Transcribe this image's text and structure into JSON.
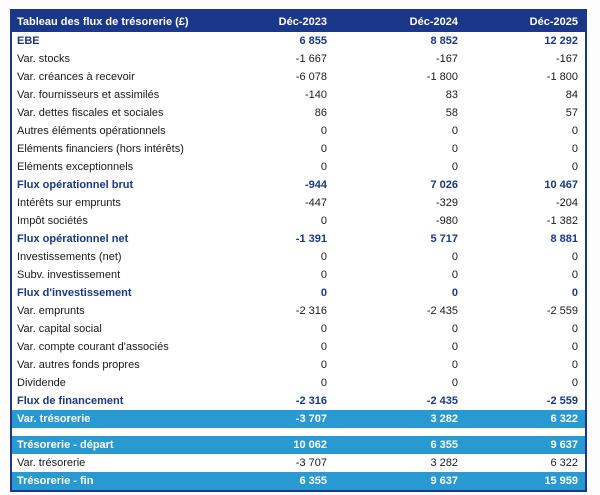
{
  "table": {
    "title": "Tableau des flux de trésorerie (£)",
    "columns": [
      "Déc-2023",
      "Déc-2024",
      "Déc-2025"
    ],
    "colors": {
      "header_navy": "#1b3789",
      "highlight_teal": "#2999d2",
      "body_text": "#1a1a1a",
      "header_text": "#ffffff"
    },
    "rows": [
      {
        "label": "EBE",
        "values": [
          "6 855",
          "8 852",
          "12 292"
        ],
        "style": "bold"
      },
      {
        "label": "Var. stocks",
        "values": [
          "-1 667",
          "-167",
          "-167"
        ],
        "style": "plain"
      },
      {
        "label": "Var. créances à recevoir",
        "values": [
          "-6 078",
          "-1 800",
          "-1 800"
        ],
        "style": "plain"
      },
      {
        "label": "Var. fournisseurs et assimilés",
        "values": [
          "-140",
          "83",
          "84"
        ],
        "style": "plain"
      },
      {
        "label": "Var. dettes fiscales et sociales",
        "values": [
          "86",
          "58",
          "57"
        ],
        "style": "plain"
      },
      {
        "label": "Autres éléments opérationnels",
        "values": [
          "0",
          "0",
          "0"
        ],
        "style": "plain"
      },
      {
        "label": "Eléments financiers (hors intérêts)",
        "values": [
          "0",
          "0",
          "0"
        ],
        "style": "plain"
      },
      {
        "label": "Eléments exceptionnels",
        "values": [
          "0",
          "0",
          "0"
        ],
        "style": "plain"
      },
      {
        "label": "Flux opérationnel brut",
        "values": [
          "-944",
          "7 026",
          "10 467"
        ],
        "style": "bold"
      },
      {
        "label": "Intérêts sur emprunts",
        "values": [
          "-447",
          "-329",
          "-204"
        ],
        "style": "plain"
      },
      {
        "label": "Impôt sociétés",
        "values": [
          "0",
          "-980",
          "-1 382"
        ],
        "style": "plain"
      },
      {
        "label": "Flux opérationnel net",
        "values": [
          "-1 391",
          "5 717",
          "8 881"
        ],
        "style": "bold"
      },
      {
        "label": "Investissements (net)",
        "values": [
          "0",
          "0",
          "0"
        ],
        "style": "plain"
      },
      {
        "label": "Subv. investissement",
        "values": [
          "0",
          "0",
          "0"
        ],
        "style": "plain"
      },
      {
        "label": "Flux d'investissement",
        "values": [
          "0",
          "0",
          "0"
        ],
        "style": "bold"
      },
      {
        "label": "Var. emprunts",
        "values": [
          "-2 316",
          "-2 435",
          "-2 559"
        ],
        "style": "plain"
      },
      {
        "label": "Var. capital social",
        "values": [
          "0",
          "0",
          "0"
        ],
        "style": "plain"
      },
      {
        "label": "Var. compte courant d'associés",
        "values": [
          "0",
          "0",
          "0"
        ],
        "style": "plain"
      },
      {
        "label": "Var. autres fonds propres",
        "values": [
          "0",
          "0",
          "0"
        ],
        "style": "plain"
      },
      {
        "label": "Dividende",
        "values": [
          "0",
          "0",
          "0"
        ],
        "style": "plain"
      },
      {
        "label": "Flux de financement",
        "values": [
          "-2 316",
          "-2 435",
          "-2 559"
        ],
        "style": "bold"
      },
      {
        "label": "Var. trésorerie",
        "values": [
          "-3 707",
          "3 282",
          "6 322"
        ],
        "style": "teal"
      },
      {
        "label": "",
        "values": [
          "",
          "",
          ""
        ],
        "style": "spacer"
      },
      {
        "label": "Trésorerie - départ",
        "values": [
          "10 062",
          "6 355",
          "9 637"
        ],
        "style": "teal"
      },
      {
        "label": "Var. trésorerie",
        "values": [
          "-3 707",
          "3 282",
          "6 322"
        ],
        "style": "plain"
      },
      {
        "label": "Trésorerie - fin",
        "values": [
          "6 355",
          "9 637",
          "15 959"
        ],
        "style": "teal"
      }
    ]
  },
  "chart_data": {
    "type": "table",
    "title": "Tableau des flux de trésorerie (£)",
    "columns": [
      "Tableau des flux de trésorerie (£)",
      "Déc-2023",
      "Déc-2024",
      "Déc-2025"
    ],
    "rows": [
      [
        "EBE",
        6855,
        8852,
        12292
      ],
      [
        "Var. stocks",
        -1667,
        -167,
        -167
      ],
      [
        "Var. créances à recevoir",
        -6078,
        -1800,
        -1800
      ],
      [
        "Var. fournisseurs et assimilés",
        -140,
        83,
        84
      ],
      [
        "Var. dettes fiscales et sociales",
        86,
        58,
        57
      ],
      [
        "Autres éléments opérationnels",
        0,
        0,
        0
      ],
      [
        "Eléments financiers (hors intérêts)",
        0,
        0,
        0
      ],
      [
        "Eléments exceptionnels",
        0,
        0,
        0
      ],
      [
        "Flux opérationnel brut",
        -944,
        7026,
        10467
      ],
      [
        "Intérêts sur emprunts",
        -447,
        -329,
        -204
      ],
      [
        "Impôt sociétés",
        0,
        -980,
        -1382
      ],
      [
        "Flux opérationnel net",
        -1391,
        5717,
        8881
      ],
      [
        "Investissements (net)",
        0,
        0,
        0
      ],
      [
        "Subv. investissement",
        0,
        0,
        0
      ],
      [
        "Flux d'investissement",
        0,
        0,
        0
      ],
      [
        "Var. emprunts",
        -2316,
        -2435,
        -2559
      ],
      [
        "Var. capital social",
        0,
        0,
        0
      ],
      [
        "Var. compte courant d'associés",
        0,
        0,
        0
      ],
      [
        "Var. autres fonds propres",
        0,
        0,
        0
      ],
      [
        "Dividende",
        0,
        0,
        0
      ],
      [
        "Flux de financement",
        -2316,
        -2435,
        -2559
      ],
      [
        "Var. trésorerie",
        -3707,
        3282,
        6322
      ],
      [
        "Trésorerie - départ",
        10062,
        6355,
        9637
      ],
      [
        "Var. trésorerie",
        -3707,
        3282,
        6322
      ],
      [
        "Trésorerie - fin",
        6355,
        9637,
        15959
      ]
    ]
  }
}
